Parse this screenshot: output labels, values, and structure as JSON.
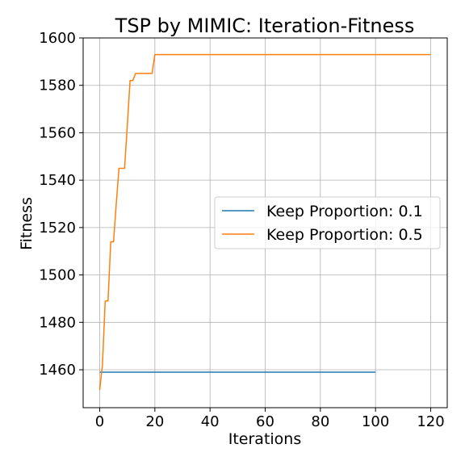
{
  "chart_data": {
    "type": "line",
    "title": "TSP by MIMIC: Iteration-Fitness",
    "xlabel": "Iterations",
    "ylabel": "Fitness",
    "xlim": [
      -6,
      126
    ],
    "ylim": [
      1444,
      1600
    ],
    "xticks": [
      0,
      20,
      40,
      60,
      80,
      100,
      120
    ],
    "yticks": [
      1460,
      1480,
      1500,
      1520,
      1540,
      1560,
      1580,
      1600
    ],
    "grid": true,
    "legend_position": "center-right",
    "series": [
      {
        "name": "Keep Proportion: 0.1",
        "color": "#1f77b4",
        "points": [
          [
            0,
            1459
          ],
          [
            100,
            1459
          ]
        ]
      },
      {
        "name": "Keep Proportion: 0.5",
        "color": "#ff7f0e",
        "points": [
          [
            0,
            1451.5
          ],
          [
            1,
            1462
          ],
          [
            2,
            1489
          ],
          [
            3,
            1489
          ],
          [
            4,
            1514
          ],
          [
            5,
            1514
          ],
          [
            6,
            1530
          ],
          [
            7,
            1545
          ],
          [
            8,
            1545
          ],
          [
            9,
            1545
          ],
          [
            10,
            1563
          ],
          [
            11,
            1582
          ],
          [
            12,
            1582
          ],
          [
            13,
            1585
          ],
          [
            14,
            1585
          ],
          [
            15,
            1585
          ],
          [
            16,
            1585
          ],
          [
            17,
            1585
          ],
          [
            18,
            1585
          ],
          [
            19,
            1585
          ],
          [
            20,
            1593
          ],
          [
            120,
            1593
          ]
        ]
      }
    ]
  }
}
